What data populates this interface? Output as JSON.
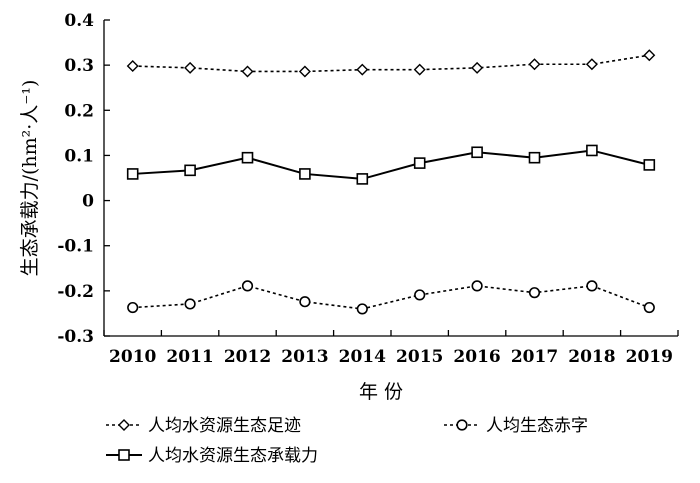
{
  "chart_data": {
    "type": "line",
    "x": [
      "2010",
      "2011",
      "2012",
      "2013",
      "2014",
      "2015",
      "2016",
      "2017",
      "2018",
      "2019"
    ],
    "xlabel": "年 份",
    "ylabel": "生态承载力/(hm²·人⁻¹)",
    "ylim": [
      -0.3,
      0.4
    ],
    "yticks": [
      "0.4",
      "0.3",
      "0.2",
      "0.1",
      "0",
      "-0.1",
      "-0.2",
      "-0.3"
    ],
    "grid": false,
    "legend_position": "bottom",
    "series": [
      {
        "name": "人均水资源生态足迹",
        "marker": "diamond",
        "line": "dotted",
        "values": [
          0.298,
          0.294,
          0.286,
          0.286,
          0.29,
          0.29,
          0.294,
          0.302,
          0.302,
          0.322
        ]
      },
      {
        "name": "人均生态赤字",
        "marker": "circle",
        "line": "dotted",
        "values": [
          -0.237,
          -0.229,
          -0.189,
          -0.224,
          -0.24,
          -0.209,
          -0.189,
          -0.204,
          -0.189,
          -0.237
        ]
      },
      {
        "name": "人均水资源生态承载力",
        "marker": "square",
        "line": "solid",
        "values": [
          0.059,
          0.067,
          0.095,
          0.059,
          0.048,
          0.083,
          0.107,
          0.095,
          0.111,
          0.079
        ]
      }
    ]
  }
}
